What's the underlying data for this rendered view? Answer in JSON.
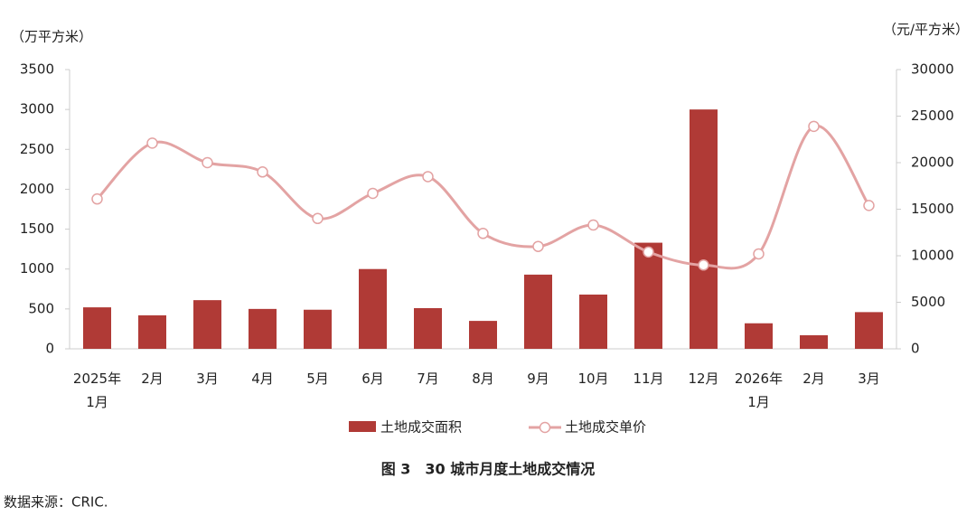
{
  "chart_data": {
    "type": "bar-line",
    "title": "图 3　30 城市月度土地成交情况",
    "source": "数据来源：CRIC.",
    "y_label": "（万平方米）",
    "y2_label": "（元/平方米）",
    "categories": [
      "2025年\n1月",
      "2月",
      "3月",
      "4月",
      "5月",
      "6月",
      "7月",
      "8月",
      "9月",
      "10月",
      "11月",
      "12月",
      "2026年\n1月",
      "2月",
      "3月"
    ],
    "series": [
      {
        "name": "土地成交面积",
        "type": "bar",
        "color": "#b03a36",
        "values": [
          520,
          420,
          610,
          500,
          490,
          1000,
          510,
          350,
          930,
          680,
          1330,
          3000,
          320,
          170,
          460
        ]
      },
      {
        "name": "土地成交单价",
        "type": "line",
        "axis": "y2",
        "color": "#e3a3a3",
        "values": [
          16100,
          22100,
          20000,
          19000,
          14000,
          16700,
          18500,
          12400,
          11000,
          13300,
          10400,
          9000,
          10200,
          23900,
          15400
        ]
      }
    ],
    "ylim": [
      0,
      3500
    ],
    "yticks": [
      0,
      500,
      1000,
      1500,
      2000,
      2500,
      3000,
      3500
    ],
    "y2lim": [
      0,
      30000
    ],
    "y2ticks": [
      0,
      5000,
      10000,
      15000,
      20000,
      25000,
      30000
    ],
    "legend": "bottom"
  }
}
